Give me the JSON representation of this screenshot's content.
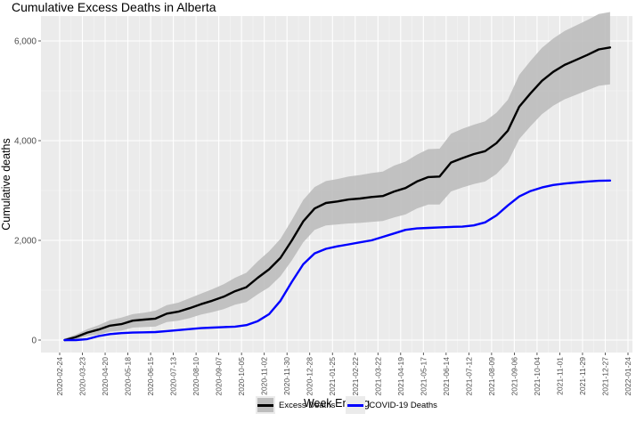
{
  "chart_data": {
    "type": "line",
    "title": "Cumulative Excess Deaths in Alberta",
    "xlabel": "Week Ending",
    "ylabel": "Cumulative deaths",
    "ylim": [
      -250,
      6500
    ],
    "y_ticks": [
      0,
      2000,
      4000,
      6000
    ],
    "y_tick_labels": [
      "0",
      "2,000",
      "4,000",
      "6,000"
    ],
    "x_tick_labels": [
      "2020-02-24",
      "2020-03-23",
      "2020-04-20",
      "2020-05-18",
      "2020-06-15",
      "2020-07-13",
      "2020-08-10",
      "2020-09-07",
      "2020-10-05",
      "2020-11-02",
      "2020-11-30",
      "2020-12-28",
      "2021-01-25",
      "2021-02-22",
      "2021-03-22",
      "2021-04-19",
      "2021-05-17",
      "2021-06-14",
      "2021-07-12",
      "2021-08-09",
      "2021-09-06",
      "2021-10-04",
      "2021-11-01",
      "2021-11-29",
      "2021-12-27",
      "2022-01-24"
    ],
    "grid": true,
    "legend_position": "bottom",
    "x": [
      "2020-03-01",
      "2020-03-15",
      "2020-03-29",
      "2020-04-12",
      "2020-04-26",
      "2020-05-10",
      "2020-05-24",
      "2020-06-07",
      "2020-06-21",
      "2020-07-05",
      "2020-07-19",
      "2020-08-02",
      "2020-08-16",
      "2020-08-30",
      "2020-09-13",
      "2020-09-27",
      "2020-10-11",
      "2020-10-25",
      "2020-11-08",
      "2020-11-22",
      "2020-12-06",
      "2020-12-20",
      "2021-01-03",
      "2021-01-17",
      "2021-01-31",
      "2021-02-14",
      "2021-02-28",
      "2021-03-14",
      "2021-03-28",
      "2021-04-11",
      "2021-04-25",
      "2021-05-09",
      "2021-05-23",
      "2021-06-06",
      "2021-06-20",
      "2021-07-04",
      "2021-07-18",
      "2021-08-01",
      "2021-08-15",
      "2021-08-29",
      "2021-09-12",
      "2021-09-26",
      "2021-10-10",
      "2021-10-24",
      "2021-11-07",
      "2021-11-21",
      "2021-12-05",
      "2021-12-19",
      "2022-01-02"
    ],
    "series": [
      {
        "name": "Excess Deaths",
        "color": "#000000",
        "values": [
          0,
          60,
          150,
          210,
          290,
          320,
          390,
          410,
          430,
          530,
          570,
          640,
          720,
          790,
          870,
          980,
          1060,
          1250,
          1420,
          1650,
          2000,
          2380,
          2640,
          2750,
          2780,
          2820,
          2840,
          2870,
          2890,
          2980,
          3050,
          3180,
          3270,
          3280,
          3560,
          3650,
          3730,
          3790,
          3950,
          4200,
          4680,
          4950,
          5200,
          5380,
          5520,
          5620,
          5720,
          5830,
          5870
        ],
        "lower": [
          -30,
          10,
          80,
          110,
          170,
          190,
          250,
          260,
          270,
          360,
          390,
          440,
          510,
          560,
          620,
          710,
          760,
          920,
          1060,
          1280,
          1600,
          1960,
          2210,
          2300,
          2320,
          2340,
          2350,
          2370,
          2390,
          2460,
          2520,
          2640,
          2720,
          2720,
          2980,
          3060,
          3130,
          3180,
          3330,
          3570,
          4030,
          4290,
          4530,
          4700,
          4830,
          4920,
          5010,
          5100,
          5130
        ],
        "upper": [
          30,
          110,
          220,
          300,
          400,
          450,
          520,
          550,
          590,
          700,
          750,
          840,
          930,
          1020,
          1120,
          1250,
          1350,
          1580,
          1780,
          2030,
          2410,
          2810,
          3070,
          3190,
          3230,
          3280,
          3310,
          3350,
          3380,
          3500,
          3580,
          3720,
          3830,
          3840,
          4140,
          4240,
          4320,
          4390,
          4560,
          4820,
          5320,
          5600,
          5860,
          6050,
          6200,
          6310,
          6420,
          6540,
          6580
        ]
      },
      {
        "name": "COVID-19 Deaths",
        "color": "#0000ff",
        "values": [
          0,
          0,
          20,
          80,
          120,
          140,
          150,
          155,
          160,
          180,
          200,
          220,
          240,
          250,
          260,
          270,
          300,
          380,
          520,
          790,
          1170,
          1520,
          1740,
          1830,
          1880,
          1920,
          1960,
          2000,
          2070,
          2140,
          2210,
          2240,
          2250,
          2260,
          2270,
          2275,
          2300,
          2360,
          2500,
          2700,
          2880,
          2990,
          3060,
          3110,
          3140,
          3160,
          3180,
          3195,
          3200
        ]
      }
    ]
  }
}
